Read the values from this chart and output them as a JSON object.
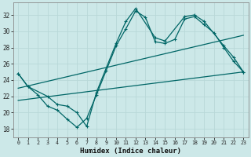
{
  "xlabel": "Humidex (Indice chaleur)",
  "background_color": "#cce8e8",
  "grid_color": "#b8d8d8",
  "line_color": "#006666",
  "xlim": [
    -0.5,
    23.5
  ],
  "ylim": [
    17.0,
    33.5
  ],
  "yticks": [
    18,
    20,
    22,
    24,
    26,
    28,
    30,
    32
  ],
  "xticks": [
    0,
    1,
    2,
    3,
    4,
    5,
    6,
    7,
    8,
    9,
    10,
    11,
    12,
    13,
    14,
    15,
    16,
    17,
    18,
    19,
    20,
    21,
    22,
    23
  ],
  "curve1_x": [
    0,
    1,
    2,
    3,
    4,
    5,
    6,
    7,
    8,
    9,
    10,
    11,
    12,
    13,
    14,
    15,
    16,
    17,
    18,
    19,
    20,
    21,
    22,
    23
  ],
  "curve1_y": [
    24.8,
    23.2,
    22.2,
    20.8,
    20.3,
    19.2,
    18.2,
    19.3,
    22.2,
    25.2,
    28.2,
    30.3,
    32.5,
    31.7,
    28.7,
    28.5,
    29.0,
    31.5,
    31.8,
    30.8,
    29.8,
    28.0,
    26.3,
    25.0
  ],
  "curve2_x": [
    0,
    1,
    3,
    4,
    5,
    6,
    7,
    8,
    10,
    11,
    12,
    14,
    15,
    17,
    18,
    19,
    21,
    22,
    23
  ],
  "curve2_y": [
    24.8,
    23.2,
    22.0,
    21.0,
    20.8,
    20.0,
    18.3,
    22.5,
    28.5,
    31.2,
    32.8,
    29.2,
    28.8,
    31.8,
    32.0,
    31.2,
    28.2,
    26.8,
    25.0
  ],
  "trend1_x": [
    0,
    23
  ],
  "trend1_y": [
    23.0,
    29.5
  ],
  "trend2_x": [
    0,
    23
  ],
  "trend2_y": [
    21.5,
    25.0
  ]
}
